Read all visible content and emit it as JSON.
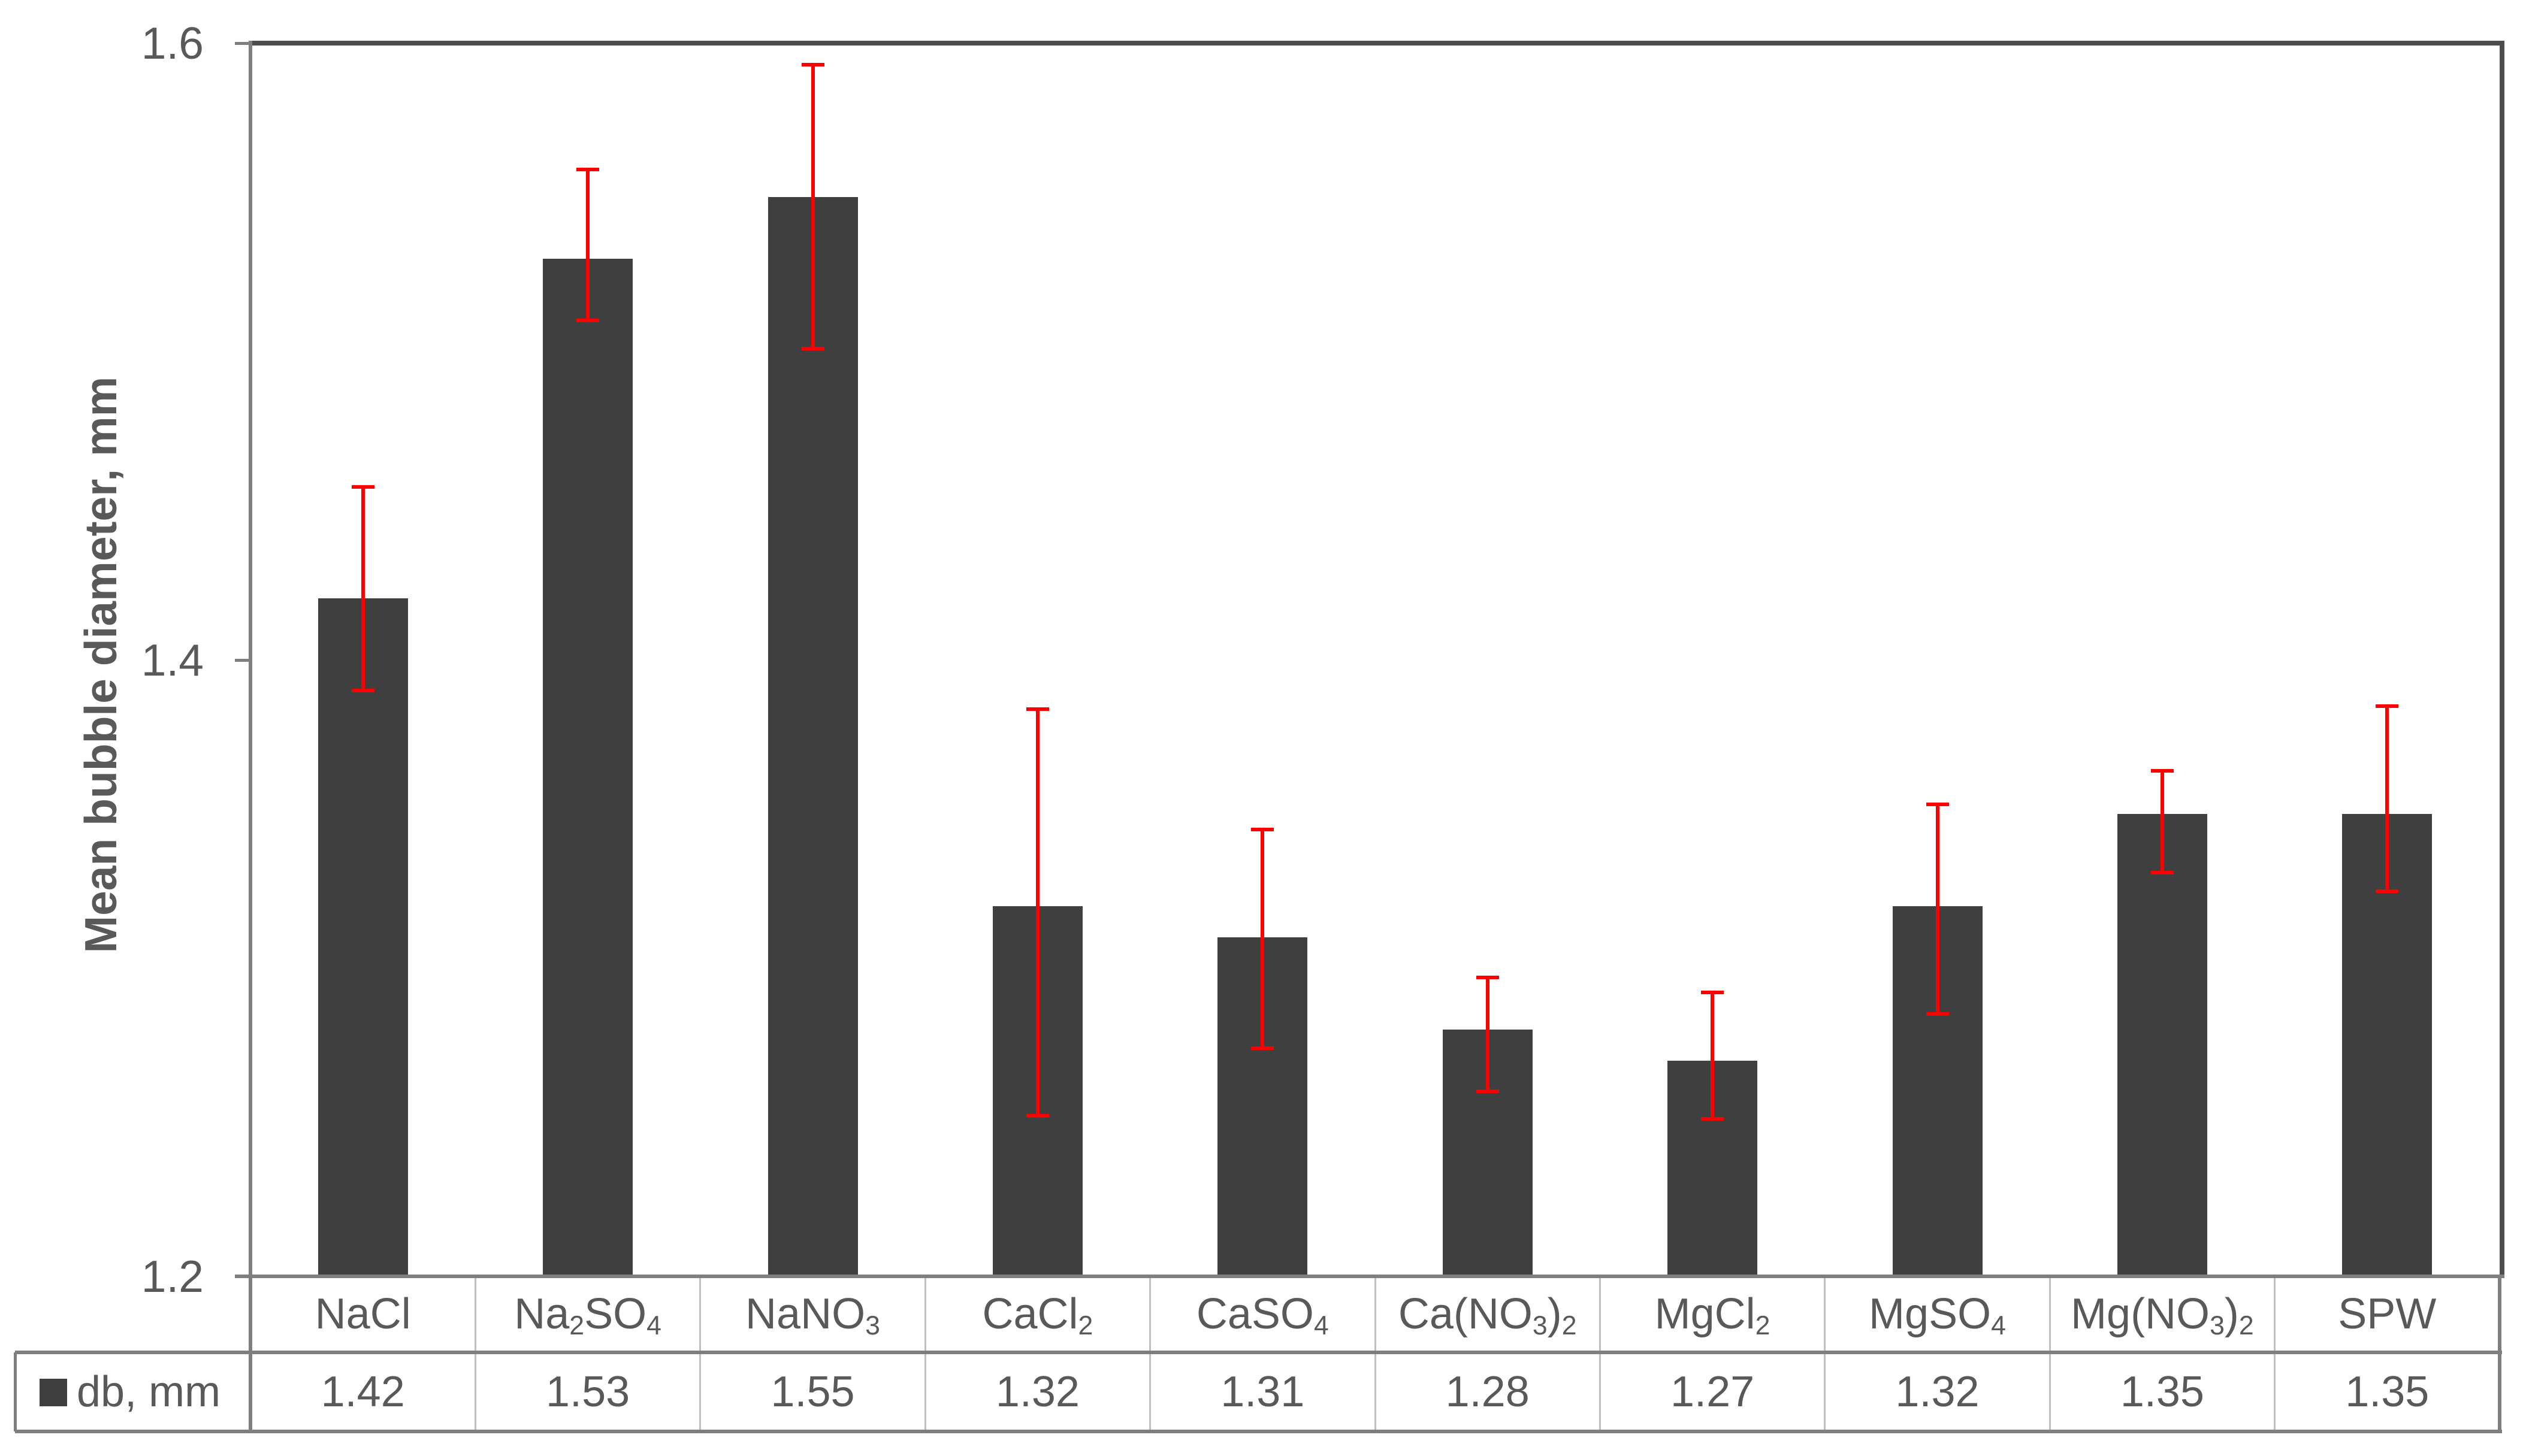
{
  "chart_data": {
    "type": "bar",
    "title": "",
    "ylabel": "Mean bubble diameter, mm",
    "xlabel": "",
    "ylim": [
      1.2,
      1.6
    ],
    "yticks": [
      1.2,
      1.4,
      1.6
    ],
    "ytick_labels": [
      "1.2",
      "1.4",
      "1.6"
    ],
    "gridlines": false,
    "legend_position": "data-table-left",
    "legend_label": "db, mm",
    "categories": [
      "NaCl",
      "Na₂SO₄",
      "NaNO₃",
      "CaCl₂",
      "CaSO₄",
      "Ca(NO₃)₂",
      "MgCl₂",
      "MgSO₄",
      "Mg(NO₃)₂",
      "SPW"
    ],
    "series": [
      {
        "name": "db, mm",
        "values": [
          1.42,
          1.53,
          1.55,
          1.32,
          1.31,
          1.28,
          1.27,
          1.32,
          1.35,
          1.35
        ],
        "value_labels": [
          "1.42",
          "1.53",
          "1.55",
          "1.32",
          "1.31",
          "1.28",
          "1.27",
          "1.32",
          "1.35",
          "1.35"
        ]
      }
    ],
    "error_bars": {
      "whisker_top": [
        1.456,
        1.559,
        1.593,
        1.384,
        1.345,
        1.297,
        1.292,
        1.353,
        1.364,
        1.385
      ],
      "whisker_bottom": [
        1.39,
        1.51,
        1.501,
        1.252,
        1.274,
        1.26,
        1.251,
        1.285,
        1.331,
        1.325
      ]
    },
    "data_table_shown": true
  },
  "colors": {
    "bar_fill": "#3f3f3f",
    "error_bar": "#ff0000",
    "axis_line": "#7f7f7f",
    "plot_frame": "#4d4d4d",
    "table_minor_border": "#bfbfbf",
    "text": "#595959",
    "background": "#ffffff"
  }
}
